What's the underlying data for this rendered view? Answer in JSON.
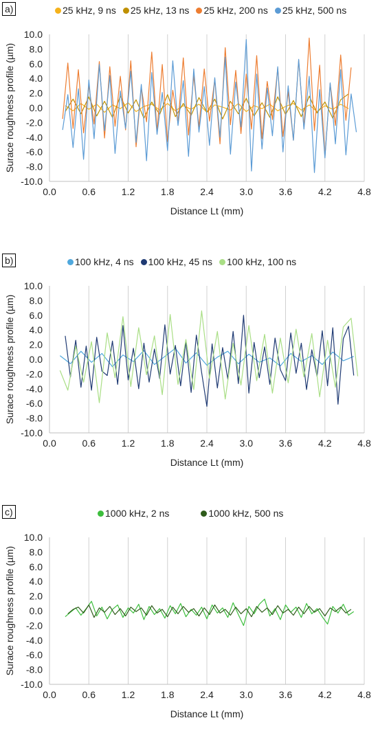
{
  "chart_data": [
    {
      "type": "line",
      "panel_label": "a)",
      "xlabel": "Distance Lt (mm)",
      "ylabel": "Surace roughness profile (µm)",
      "xlim": [
        0.0,
        4.8
      ],
      "ylim": [
        -10.0,
        10.0
      ],
      "xticks": [
        "0.0",
        "0.6",
        "1.2",
        "1.8",
        "2.4",
        "3.0",
        "3.6",
        "4.2",
        "4.8"
      ],
      "yticks": [
        "10.0",
        "8.0",
        "6.0",
        "4.0",
        "2.0",
        "0.0",
        "-2.0",
        "-4.0",
        "-6.0",
        "-8.0",
        "-10.0"
      ],
      "grid": "vertical",
      "legend_position": "top",
      "series": [
        {
          "name": "25 kHz, 9 ns",
          "color": "#F5B21B",
          "x": [
            0.24,
            0.36,
            0.48,
            0.6,
            0.72,
            0.84,
            0.96,
            1.08,
            1.2,
            1.32,
            1.44,
            1.56,
            1.68,
            1.8,
            1.92,
            2.04,
            2.16,
            2.28,
            2.4,
            2.52,
            2.64,
            2.76,
            2.88,
            3.0,
            3.12,
            3.24,
            3.36,
            3.48,
            3.6,
            3.72,
            3.84,
            3.96,
            4.08,
            4.2,
            4.32,
            4.44,
            4.56
          ],
          "y": [
            0.3,
            -0.4,
            0.6,
            -0.2,
            0.5,
            -0.6,
            0.4,
            -0.1,
            0.7,
            -0.5,
            0.2,
            0.5,
            -0.3,
            0.6,
            -0.4,
            0.3,
            -0.2,
            0.5,
            -0.6,
            0.4,
            0.1,
            -0.3,
            0.6,
            -0.5,
            0.3,
            -0.1,
            0.5,
            -0.4,
            0.2,
            0.6,
            -0.3,
            0.4,
            -0.5,
            0.3,
            -0.2,
            0.5,
            -0.1
          ]
        },
        {
          "name": "25 kHz, 13 ns",
          "color": "#BF9000",
          "x": [
            0.24,
            0.36,
            0.48,
            0.6,
            0.72,
            0.84,
            0.96,
            1.08,
            1.2,
            1.32,
            1.44,
            1.56,
            1.68,
            1.8,
            1.92,
            2.04,
            2.16,
            2.28,
            2.4,
            2.52,
            2.64,
            2.76,
            2.88,
            3.0,
            3.12,
            3.24,
            3.36,
            3.48,
            3.6,
            3.72,
            3.84,
            3.96,
            4.08,
            4.2,
            4.32,
            4.44,
            4.56
          ],
          "y": [
            -0.5,
            1.2,
            -0.8,
            1.5,
            -1.1,
            0.9,
            -1.3,
            1.6,
            -0.7,
            1.1,
            -1.4,
            0.8,
            -0.9,
            1.8,
            -1.2,
            0.6,
            -1.0,
            1.4,
            -0.6,
            1.2,
            -1.5,
            0.9,
            -0.8,
            1.3,
            -1.1,
            0.7,
            -1.3,
            1.5,
            -0.9,
            1.0,
            -1.2,
            1.6,
            -0.7,
            0.8,
            -1.4,
            1.1,
            1.9
          ]
        },
        {
          "name": "25 kHz, 200 ns",
          "color": "#ED7D31",
          "x": [
            0.2,
            0.28,
            0.36,
            0.44,
            0.52,
            0.6,
            0.68,
            0.76,
            0.84,
            0.92,
            1.0,
            1.08,
            1.16,
            1.24,
            1.32,
            1.4,
            1.48,
            1.56,
            1.64,
            1.72,
            1.8,
            1.88,
            1.96,
            2.04,
            2.12,
            2.2,
            2.28,
            2.36,
            2.44,
            2.52,
            2.6,
            2.68,
            2.76,
            2.84,
            2.92,
            3.0,
            3.08,
            3.16,
            3.24,
            3.32,
            3.4,
            3.48,
            3.56,
            3.64,
            3.72,
            3.8,
            3.88,
            3.96,
            4.04,
            4.12,
            4.2,
            4.28,
            4.36,
            4.44,
            4.52,
            4.6
          ],
          "y": [
            -1.5,
            6.1,
            -2.8,
            5.2,
            -3.4,
            3.1,
            -2.2,
            6.3,
            -4.1,
            5.6,
            -2.5,
            4.3,
            -3.0,
            6.4,
            -5.3,
            2.8,
            -1.9,
            7.6,
            -3.2,
            5.9,
            -4.6,
            2.4,
            -2.1,
            6.8,
            -3.7,
            4.4,
            -2.6,
            5.3,
            -1.8,
            3.9,
            -4.9,
            8.2,
            -2.3,
            5.1,
            -3.5,
            4.6,
            -2.9,
            7.1,
            -4.2,
            3.6,
            -1.6,
            5.4,
            -3.9,
            2.2,
            -4.4,
            6.5,
            -2.7,
            9.5,
            -3.1,
            5.8,
            -6.7,
            3.3,
            -2.4,
            7.2,
            -1.7,
            5.5
          ]
        },
        {
          "name": "25 kHz, 500 ns",
          "color": "#5B9BD5",
          "x": [
            0.2,
            0.28,
            0.36,
            0.44,
            0.52,
            0.6,
            0.68,
            0.76,
            0.84,
            0.92,
            1.0,
            1.08,
            1.16,
            1.24,
            1.32,
            1.4,
            1.48,
            1.56,
            1.64,
            1.72,
            1.8,
            1.88,
            1.96,
            2.04,
            2.12,
            2.2,
            2.28,
            2.36,
            2.44,
            2.52,
            2.6,
            2.68,
            2.76,
            2.84,
            2.92,
            3.0,
            3.08,
            3.16,
            3.24,
            3.32,
            3.4,
            3.48,
            3.56,
            3.64,
            3.72,
            3.8,
            3.88,
            3.96,
            4.04,
            4.12,
            4.2,
            4.28,
            4.36,
            4.44,
            4.52,
            4.6,
            4.68
          ],
          "y": [
            -3.0,
            1.8,
            -5.4,
            2.6,
            -7.0,
            3.8,
            -4.2,
            5.9,
            -3.1,
            4.4,
            -6.2,
            2.3,
            -2.8,
            5.0,
            -4.7,
            3.2,
            -7.2,
            4.8,
            -3.6,
            2.1,
            -5.8,
            6.4,
            -2.4,
            3.7,
            -6.6,
            5.3,
            -3.3,
            2.9,
            -5.1,
            4.1,
            -4.0,
            6.9,
            -6.3,
            3.5,
            -2.6,
            9.3,
            -8.6,
            4.6,
            -5.6,
            2.7,
            -3.8,
            5.6,
            -6.0,
            3.0,
            -4.4,
            6.6,
            -2.9,
            4.3,
            -8.8,
            2.5,
            -6.8,
            3.4,
            -4.9,
            5.2,
            -6.4,
            1.9,
            -3.3
          ]
        }
      ]
    },
    {
      "type": "line",
      "panel_label": "b)",
      "xlabel": "Distance Lt (mm)",
      "ylabel": "Surace roughness profile (µm)",
      "xlim": [
        0.0,
        4.8
      ],
      "ylim": [
        -10.0,
        10.0
      ],
      "xticks": [
        "0.0",
        "0.6",
        "1.2",
        "1.8",
        "2.4",
        "3.0",
        "3.6",
        "4.2",
        "4.8"
      ],
      "yticks": [
        "10.0",
        "8.0",
        "6.0",
        "4.0",
        "2.0",
        "0.0",
        "-2.0",
        "-4.0",
        "-6.0",
        "-8.0",
        "-10.0"
      ],
      "grid": "vertical",
      "legend_position": "top",
      "series": [
        {
          "name": "100 kHz, 4 ns",
          "color": "#4FA8DD",
          "x": [
            0.16,
            0.32,
            0.48,
            0.64,
            0.8,
            0.96,
            1.12,
            1.28,
            1.44,
            1.6,
            1.76,
            1.92,
            2.08,
            2.24,
            2.4,
            2.56,
            2.72,
            2.88,
            3.04,
            3.2,
            3.36,
            3.52,
            3.68,
            3.84,
            4.0,
            4.16,
            4.32,
            4.48,
            4.64
          ],
          "y": [
            0.5,
            -0.6,
            1.1,
            -0.4,
            0.8,
            -1.0,
            0.6,
            -0.3,
            1.2,
            -0.7,
            0.4,
            1.5,
            -0.5,
            0.9,
            -0.8,
            0.3,
            1.1,
            -0.6,
            0.7,
            -0.4,
            0.2,
            -0.9,
            0.8,
            -0.3,
            0.5,
            -0.7,
            1.0,
            -0.2,
            0.4
          ]
        },
        {
          "name": "100 kHz, 45 ns",
          "color": "#1F3A73",
          "x": [
            0.24,
            0.32,
            0.4,
            0.48,
            0.56,
            0.64,
            0.72,
            0.8,
            0.88,
            0.96,
            1.04,
            1.12,
            1.2,
            1.28,
            1.36,
            1.44,
            1.52,
            1.6,
            1.68,
            1.76,
            1.84,
            1.92,
            2.0,
            2.08,
            2.16,
            2.24,
            2.32,
            2.4,
            2.48,
            2.56,
            2.64,
            2.72,
            2.8,
            2.88,
            2.96,
            3.04,
            3.12,
            3.2,
            3.28,
            3.36,
            3.44,
            3.52,
            3.6,
            3.68,
            3.76,
            3.84,
            3.92,
            4.0,
            4.08,
            4.16,
            4.24,
            4.32,
            4.4,
            4.48,
            4.56,
            4.64
          ],
          "y": [
            3.2,
            -2.4,
            2.6,
            -3.8,
            1.8,
            -4.2,
            3.0,
            -1.6,
            -2.2,
            2.5,
            -3.4,
            4.6,
            -2.8,
            1.5,
            -4.0,
            2.2,
            -3.1,
            1.4,
            -2.6,
            4.7,
            -2.0,
            1.9,
            -3.6,
            2.4,
            -4.5,
            3.3,
            -1.8,
            -6.4,
            2.1,
            -3.9,
            1.6,
            -2.7,
            3.8,
            -3.3,
            6.0,
            -4.6,
            2.3,
            -2.5,
            1.7,
            -3.4,
            2.9,
            -1.4,
            -2.9,
            3.6,
            -1.9,
            2.2,
            -4.1,
            1.3,
            -2.3,
            3.9,
            -3.6,
            4.3,
            -6.1,
            2.8,
            4.5,
            -2.2
          ]
        },
        {
          "name": "100 kHz, 100 ns",
          "color": "#A9DE85",
          "x": [
            0.16,
            0.28,
            0.4,
            0.52,
            0.64,
            0.76,
            0.88,
            1.0,
            1.12,
            1.24,
            1.36,
            1.48,
            1.6,
            1.72,
            1.84,
            1.96,
            2.08,
            2.2,
            2.32,
            2.44,
            2.56,
            2.68,
            2.8,
            2.92,
            3.04,
            3.16,
            3.28,
            3.4,
            3.52,
            3.64,
            3.76,
            3.88,
            4.0,
            4.12,
            4.24,
            4.36,
            4.48,
            4.6,
            4.7
          ],
          "y": [
            -1.5,
            -4.2,
            1.8,
            -3.1,
            2.4,
            -5.9,
            3.6,
            -2.5,
            5.8,
            -3.7,
            4.3,
            -2.1,
            3.2,
            -4.8,
            6.1,
            -3.4,
            2.7,
            -4.1,
            6.6,
            -2.6,
            3.8,
            -5.4,
            2.2,
            -3.5,
            4.6,
            -2.9,
            3.4,
            -4.6,
            2.9,
            -3.2,
            4.1,
            -2.4,
            3.5,
            -5.1,
            2.6,
            -3.8,
            4.4,
            5.6,
            -2.3
          ]
        }
      ]
    },
    {
      "type": "line",
      "panel_label": "c)",
      "xlabel": "Distance Lt (mm)",
      "ylabel": "Surace roughness profile (µm)",
      "xlim": [
        0.0,
        4.8
      ],
      "ylim": [
        -10.0,
        10.0
      ],
      "xticks": [
        "0.0",
        "0.6",
        "1.2",
        "1.8",
        "2.4",
        "3.0",
        "3.6",
        "4.2",
        "4.8"
      ],
      "yticks": [
        "10.0",
        "8.0",
        "6.0",
        "4.0",
        "2.0",
        "0.0",
        "-2.0",
        "-4.0",
        "-6.0",
        "-8.0",
        "-10.0"
      ],
      "grid": "vertical",
      "legend_position": "top",
      "series": [
        {
          "name": "1000 kHz, 2 ns",
          "color": "#3DBE3D",
          "x": [
            0.24,
            0.32,
            0.4,
            0.48,
            0.56,
            0.64,
            0.72,
            0.8,
            0.88,
            0.96,
            1.04,
            1.12,
            1.2,
            1.28,
            1.36,
            1.44,
            1.52,
            1.6,
            1.68,
            1.76,
            1.84,
            1.92,
            2.0,
            2.08,
            2.16,
            2.24,
            2.32,
            2.4,
            2.48,
            2.56,
            2.64,
            2.72,
            2.8,
            2.88,
            2.96,
            3.04,
            3.12,
            3.2,
            3.28,
            3.36,
            3.44,
            3.52,
            3.6,
            3.68,
            3.76,
            3.84,
            3.92,
            4.0,
            4.08,
            4.16,
            4.24,
            4.32,
            4.4,
            4.48,
            4.56,
            4.64
          ],
          "y": [
            -0.8,
            -0.2,
            0.4,
            -0.6,
            0.3,
            1.3,
            -0.7,
            0.5,
            -1.1,
            0.2,
            0.8,
            -0.9,
            0.4,
            -0.3,
            0.9,
            -1.2,
            0.6,
            -0.5,
            0.3,
            -1.0,
            0.7,
            -0.4,
            1.0,
            -0.8,
            0.2,
            -0.6,
            0.5,
            -1.1,
            0.8,
            -0.3,
            0.4,
            -0.9,
            1.1,
            -0.5,
            -2.0,
            0.6,
            -0.4,
            0.9,
            1.6,
            -0.7,
            0.3,
            -1.2,
            0.8,
            -0.2,
            0.5,
            -0.9,
            1.0,
            -0.4,
            0.3,
            -0.8,
            -1.8,
            0.6,
            -0.3,
            0.9,
            -0.6,
            -0.1
          ]
        },
        {
          "name": "1000 kHz, 500 ns",
          "color": "#2E5B1A",
          "x": [
            0.28,
            0.36,
            0.44,
            0.52,
            0.6,
            0.68,
            0.76,
            0.84,
            0.92,
            1.0,
            1.08,
            1.16,
            1.24,
            1.32,
            1.4,
            1.48,
            1.56,
            1.64,
            1.72,
            1.8,
            1.88,
            1.96,
            2.04,
            2.12,
            2.2,
            2.28,
            2.36,
            2.44,
            2.52,
            2.6,
            2.68,
            2.76,
            2.84,
            2.92,
            3.0,
            3.08,
            3.16,
            3.24,
            3.32,
            3.4,
            3.48,
            3.56,
            3.64,
            3.72,
            3.8,
            3.88,
            3.96,
            4.04,
            4.12,
            4.2,
            4.28,
            4.36,
            4.44,
            4.52,
            4.6
          ],
          "y": [
            -0.4,
            0.2,
            0.5,
            -0.3,
            0.8,
            -0.9,
            0.4,
            -0.2,
            0.6,
            -0.5,
            0.3,
            -0.7,
            0.5,
            -0.1,
            0.4,
            -0.6,
            0.7,
            -0.3,
            0.2,
            -0.8,
            0.5,
            -0.4,
            0.6,
            -0.2,
            0.3,
            -0.7,
            0.4,
            -0.5,
            0.8,
            -0.3,
            0.2,
            -0.6,
            0.5,
            -0.4,
            0.3,
            -0.8,
            0.6,
            -0.2,
            0.4,
            -0.5,
            0.7,
            -0.3,
            0.2,
            -0.6,
            0.5,
            -0.4,
            0.6,
            -0.2,
            0.3,
            -0.7,
            0.4,
            -0.1,
            0.5,
            -0.3,
            0.2
          ]
        }
      ]
    }
  ]
}
